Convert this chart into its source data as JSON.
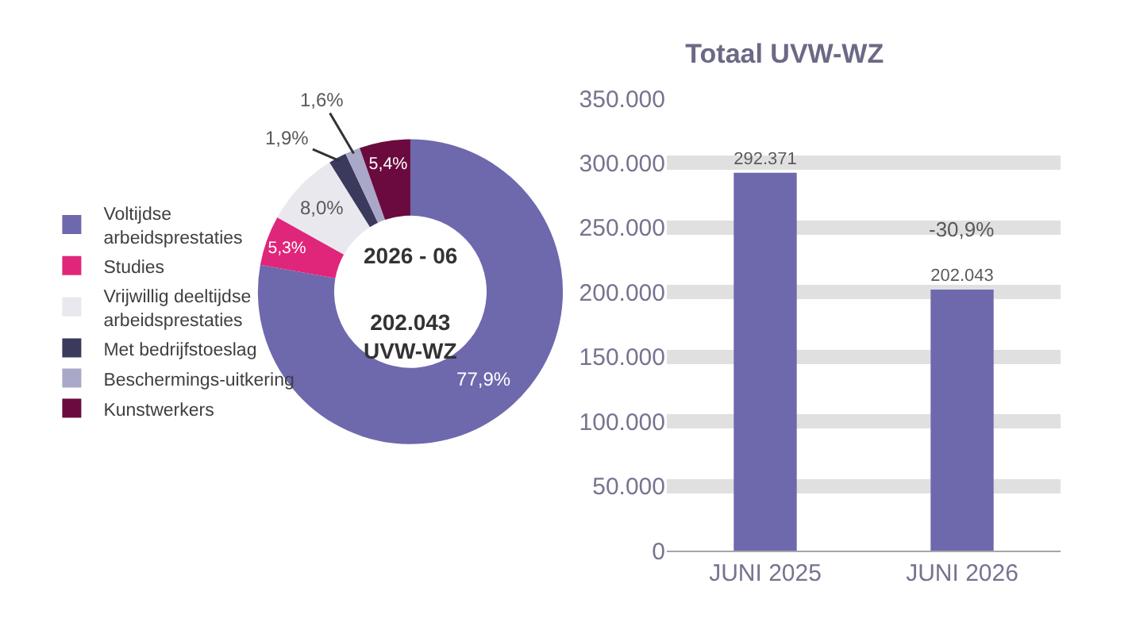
{
  "chart_data": [
    {
      "type": "donut",
      "categories": [
        "Voltijdse arbeidsprestaties",
        "Studies",
        "Vrijwillig deeltijdse arbeidsprestaties",
        "Met bedrijfstoeslag",
        "Beschermings-uitkering",
        "Kunstwerkers"
      ],
      "values": [
        77.9,
        5.3,
        8.0,
        1.9,
        1.6,
        5.4
      ],
      "value_labels": [
        "77,9%",
        "5,3%",
        "8,0%",
        "1,9%",
        "1,6%",
        "5,4%"
      ],
      "colors": [
        "#6e68ad",
        "#e0267a",
        "#e8e8ee",
        "#3b3a5c",
        "#aaa8c8",
        "#6b0a3e"
      ],
      "legend": "left",
      "annotations": [
        "2026 - 06",
        "202.043 UVW-WZ"
      ]
    },
    {
      "type": "bar",
      "title": "Totaal UVW-WZ",
      "categories": [
        "JUNI 2025",
        "JUNI 2026"
      ],
      "values": [
        292371,
        202043
      ],
      "value_labels": [
        "292.371",
        "202.043"
      ],
      "color": "#6e68ad",
      "ylim": [
        0,
        350000
      ],
      "yticks": [
        {
          "value": 0,
          "label": "0"
        },
        {
          "value": 50000,
          "label": "50.000"
        },
        {
          "value": 100000,
          "label": "100.000"
        },
        {
          "value": 150000,
          "label": "150.000"
        },
        {
          "value": 200000,
          "label": "200.000"
        },
        {
          "value": 250000,
          "label": "250.000"
        },
        {
          "value": 300000,
          "label": "300.000"
        },
        {
          "value": 350000,
          "label": "350.000"
        }
      ],
      "grid": "y",
      "annotations": [
        {
          "text": "-30,9%",
          "x": "JUNI 2026",
          "y": 202043
        }
      ]
    }
  ]
}
